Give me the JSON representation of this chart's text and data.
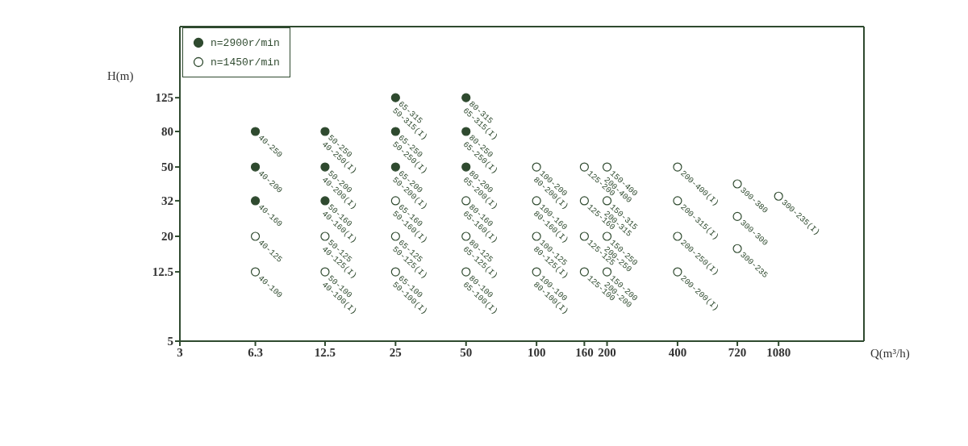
{
  "chart_data": {
    "type": "scatter",
    "xlabel": "Q(m³/h)",
    "ylabel": "H(m)",
    "log": "xy",
    "marker": "circle",
    "legend": "top left",
    "grid": false,
    "xlim": [
      3,
      2500
    ],
    "xticks": [
      3,
      6.3,
      12.5,
      25,
      50,
      100,
      160,
      200,
      400,
      720,
      1080
    ],
    "ylim": [
      5,
      320
    ],
    "yticks": [
      5,
      12.5,
      20,
      32,
      50,
      80,
      125
    ],
    "series": [
      {
        "name": "n=2900r/min",
        "color": "#2f4a2f",
        "x": [
          6.3,
          6.3,
          6.3,
          12.5,
          12.5,
          12.5,
          25,
          25,
          25,
          50,
          50,
          50
        ],
        "values": [
          80,
          50,
          32,
          80,
          50,
          32,
          125,
          80,
          50,
          125,
          80,
          50
        ]
      },
      {
        "name": "n=1450r/min",
        "color": "#ffffff",
        "x": [
          6.3,
          6.3,
          12.5,
          12.5,
          25,
          25,
          25,
          50,
          50,
          50,
          100,
          100,
          100,
          100,
          160,
          160,
          160,
          160,
          200,
          200,
          200,
          200,
          400,
          400,
          400,
          400,
          720,
          720,
          720,
          1080
        ],
        "values": [
          20,
          12.5,
          20,
          12.5,
          32,
          20,
          12.5,
          32,
          20,
          12.5,
          50,
          32,
          20,
          12.5,
          50,
          32,
          20,
          12.5,
          50,
          32,
          20,
          12.5,
          50,
          32,
          20,
          12.5,
          40,
          26,
          17,
          34
        ]
      }
    ],
    "annotations": [
      {
        "text": "40-250",
        "x": 6.3,
        "y": 80
      },
      {
        "text": "40-200",
        "x": 6.3,
        "y": 50
      },
      {
        "text": "40-160",
        "x": 6.3,
        "y": 32
      },
      {
        "text": "40-125",
        "x": 6.3,
        "y": 20
      },
      {
        "text": "40-100",
        "x": 6.3,
        "y": 12.5
      },
      {
        "text": "50-250\n40-250(I)",
        "x": 12.5,
        "y": 80
      },
      {
        "text": "50-200\n40-200(I)",
        "x": 12.5,
        "y": 50
      },
      {
        "text": "50-160\n40-160(I)",
        "x": 12.5,
        "y": 32
      },
      {
        "text": "50-125\n40-125(I)",
        "x": 12.5,
        "y": 20
      },
      {
        "text": "50-100\n40-100(I)",
        "x": 12.5,
        "y": 12.5
      },
      {
        "text": "65-315\n50-315(I)",
        "x": 25,
        "y": 125
      },
      {
        "text": "65-250\n50-250(I)",
        "x": 25,
        "y": 80
      },
      {
        "text": "65-200\n50-200(I)",
        "x": 25,
        "y": 50
      },
      {
        "text": "65-160\n50-160(I)",
        "x": 25,
        "y": 32
      },
      {
        "text": "65-125\n50-125(I)",
        "x": 25,
        "y": 20
      },
      {
        "text": "65-100\n50-100(I)",
        "x": 25,
        "y": 12.5
      },
      {
        "text": "80-315\n65-315(I)",
        "x": 50,
        "y": 125
      },
      {
        "text": "80-250\n65-250(I)",
        "x": 50,
        "y": 80
      },
      {
        "text": "80-200\n65-200(I)",
        "x": 50,
        "y": 50
      },
      {
        "text": "80-160\n65-160(I)",
        "x": 50,
        "y": 32
      },
      {
        "text": "80-125\n65-125(I)",
        "x": 50,
        "y": 20
      },
      {
        "text": "80-100\n65-100(I)",
        "x": 50,
        "y": 12.5
      },
      {
        "text": "100-200\n80-200(I)",
        "x": 100,
        "y": 50
      },
      {
        "text": "100-160\n80-160(I)",
        "x": 100,
        "y": 32
      },
      {
        "text": "100-125\n80-125(I)",
        "x": 100,
        "y": 20
      },
      {
        "text": "100-100\n80-100(I)",
        "x": 100,
        "y": 12.5
      },
      {
        "text": "125-200",
        "x": 160,
        "y": 50
      },
      {
        "text": "125-160",
        "x": 160,
        "y": 32
      },
      {
        "text": "125-125",
        "x": 160,
        "y": 20
      },
      {
        "text": "125-100",
        "x": 160,
        "y": 12.5
      },
      {
        "text": "150-400\n200-400",
        "x": 200,
        "y": 50
      },
      {
        "text": "150-315\n200-315",
        "x": 200,
        "y": 32
      },
      {
        "text": "150-250\n200-250",
        "x": 200,
        "y": 20
      },
      {
        "text": "150-200\n200-200",
        "x": 200,
        "y": 12.5
      },
      {
        "text": "200-400(I)",
        "x": 400,
        "y": 50
      },
      {
        "text": "200-315(I)",
        "x": 400,
        "y": 32
      },
      {
        "text": "200-250(I)",
        "x": 400,
        "y": 20
      },
      {
        "text": "200-200(I)",
        "x": 400,
        "y": 12.5
      },
      {
        "text": "300-380",
        "x": 720,
        "y": 40
      },
      {
        "text": "300-300",
        "x": 720,
        "y": 26
      },
      {
        "text": "300-235",
        "x": 720,
        "y": 17
      },
      {
        "text": "300-235(I)",
        "x": 1080,
        "y": 34
      }
    ]
  }
}
